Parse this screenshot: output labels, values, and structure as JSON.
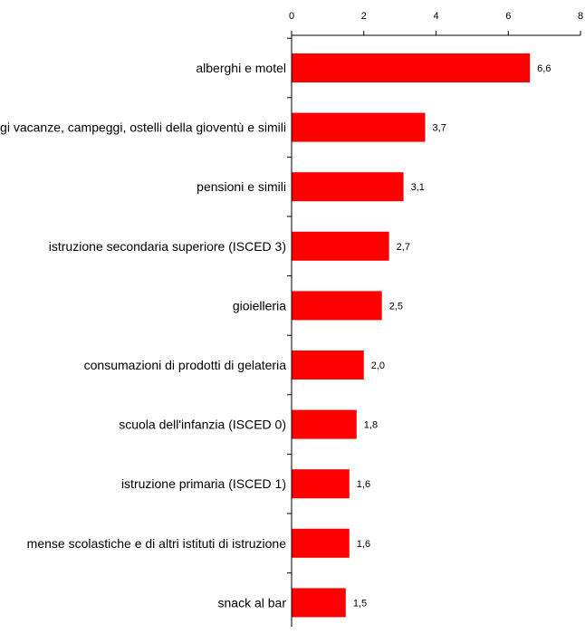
{
  "chart_data": {
    "type": "bar",
    "orientation": "horizontal",
    "x_axis_position": "top",
    "categories": [
      "alberghi e motel",
      "villaggi vacanze, campeggi, ostelli della gioventù e simili",
      "pensioni e simili",
      "istruzione secondaria superiore (ISCED 3)",
      "gioielleria",
      "consumazioni di prodotti di gelateria",
      "scuola dell'infanzia (ISCED 0)",
      "istruzione primaria (ISCED 1)",
      "mense scolastiche e di altri istituti di istruzione",
      "snack al bar"
    ],
    "values": [
      6.6,
      3.7,
      3.1,
      2.7,
      2.5,
      2.0,
      1.8,
      1.6,
      1.6,
      1.5
    ],
    "value_labels": [
      "6,6",
      "3,7",
      "3,1",
      "2,7",
      "2,5",
      "2,0",
      "1,8",
      "1,6",
      "1,6",
      "1,5"
    ],
    "xlim": [
      0,
      8
    ],
    "ticks": [
      0,
      2,
      4,
      6,
      8
    ],
    "tick_labels": [
      "0",
      "2",
      "4",
      "6",
      "8"
    ],
    "grid": false,
    "bar_color": "#ff0000",
    "title": "",
    "xlabel": "",
    "ylabel": ""
  }
}
